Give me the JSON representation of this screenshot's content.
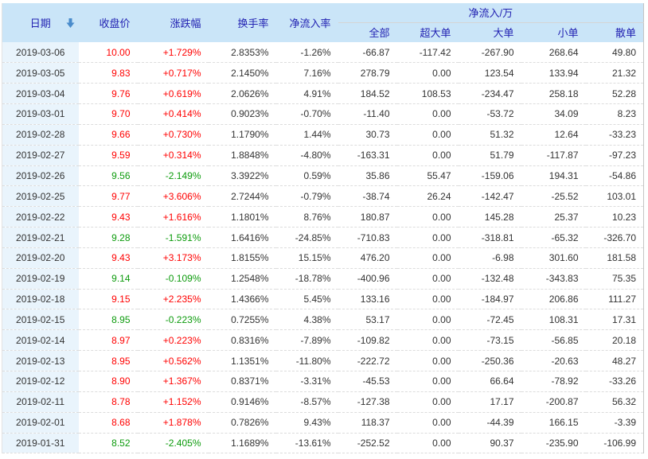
{
  "colors": {
    "up": "#ff0000",
    "down": "#0c9b0c",
    "header_text": "#2222b2",
    "header_bg": "#cae5f8",
    "date_col_bg": "#e9f4fc",
    "sort_arrow": "#4a8ccc"
  },
  "table": {
    "headers": {
      "date": "日期",
      "close": "收盘价",
      "change": "涨跌幅",
      "turnover": "换手率",
      "inflow_rate": "净流入率",
      "group": "净流入/万",
      "sub_all": "全部",
      "sub_super_large": "超大单",
      "sub_large": "大单",
      "sub_small": "小单",
      "sub_scattered": "散单"
    },
    "sort": {
      "column": "date",
      "direction": "desc"
    },
    "row_cell_keys": [
      "date",
      "close",
      "change",
      "turnover",
      "inflow_rate",
      "all",
      "super_large",
      "large",
      "small",
      "scattered"
    ],
    "rows": [
      {
        "date": "2019-03-06",
        "close": "10.00",
        "trend": "up",
        "change": "+1.729%",
        "turnover": "2.8353%",
        "inflow_rate": "-1.26%",
        "all": "-66.87",
        "super_large": "-117.42",
        "large": "-267.90",
        "small": "268.64",
        "scattered": "49.80"
      },
      {
        "date": "2019-03-05",
        "close": "9.83",
        "trend": "up",
        "change": "+0.717%",
        "turnover": "2.1450%",
        "inflow_rate": "7.16%",
        "all": "278.79",
        "super_large": "0.00",
        "large": "123.54",
        "small": "133.94",
        "scattered": "21.32"
      },
      {
        "date": "2019-03-04",
        "close": "9.76",
        "trend": "up",
        "change": "+0.619%",
        "turnover": "2.0626%",
        "inflow_rate": "4.91%",
        "all": "184.52",
        "super_large": "108.53",
        "large": "-234.47",
        "small": "258.18",
        "scattered": "52.28"
      },
      {
        "date": "2019-03-01",
        "close": "9.70",
        "trend": "up",
        "change": "+0.414%",
        "turnover": "0.9023%",
        "inflow_rate": "-0.70%",
        "all": "-11.40",
        "super_large": "0.00",
        "large": "-53.72",
        "small": "34.09",
        "scattered": "8.23"
      },
      {
        "date": "2019-02-28",
        "close": "9.66",
        "trend": "up",
        "change": "+0.730%",
        "turnover": "1.1790%",
        "inflow_rate": "1.44%",
        "all": "30.73",
        "super_large": "0.00",
        "large": "51.32",
        "small": "12.64",
        "scattered": "-33.23"
      },
      {
        "date": "2019-02-27",
        "close": "9.59",
        "trend": "up",
        "change": "+0.314%",
        "turnover": "1.8848%",
        "inflow_rate": "-4.80%",
        "all": "-163.31",
        "super_large": "0.00",
        "large": "51.79",
        "small": "-117.87",
        "scattered": "-97.23"
      },
      {
        "date": "2019-02-26",
        "close": "9.56",
        "trend": "down",
        "change": "-2.149%",
        "turnover": "3.3922%",
        "inflow_rate": "0.59%",
        "all": "35.86",
        "super_large": "55.47",
        "large": "-159.06",
        "small": "194.31",
        "scattered": "-54.86"
      },
      {
        "date": "2019-02-25",
        "close": "9.77",
        "trend": "up",
        "change": "+3.606%",
        "turnover": "2.7244%",
        "inflow_rate": "-0.79%",
        "all": "-38.74",
        "super_large": "26.24",
        "large": "-142.47",
        "small": "-25.52",
        "scattered": "103.01"
      },
      {
        "date": "2019-02-22",
        "close": "9.43",
        "trend": "up",
        "change": "+1.616%",
        "turnover": "1.1801%",
        "inflow_rate": "8.76%",
        "all": "180.87",
        "super_large": "0.00",
        "large": "145.28",
        "small": "25.37",
        "scattered": "10.23"
      },
      {
        "date": "2019-02-21",
        "close": "9.28",
        "trend": "down",
        "change": "-1.591%",
        "turnover": "1.6416%",
        "inflow_rate": "-24.85%",
        "all": "-710.83",
        "super_large": "0.00",
        "large": "-318.81",
        "small": "-65.32",
        "scattered": "-326.70"
      },
      {
        "date": "2019-02-20",
        "close": "9.43",
        "trend": "up",
        "change": "+3.173%",
        "turnover": "1.8155%",
        "inflow_rate": "15.15%",
        "all": "476.20",
        "super_large": "0.00",
        "large": "-6.98",
        "small": "301.60",
        "scattered": "181.58"
      },
      {
        "date": "2019-02-19",
        "close": "9.14",
        "trend": "down",
        "change": "-0.109%",
        "turnover": "1.2548%",
        "inflow_rate": "-18.78%",
        "all": "-400.96",
        "super_large": "0.00",
        "large": "-132.48",
        "small": "-343.83",
        "scattered": "75.35"
      },
      {
        "date": "2019-02-18",
        "close": "9.15",
        "trend": "up",
        "change": "+2.235%",
        "turnover": "1.4366%",
        "inflow_rate": "5.45%",
        "all": "133.16",
        "super_large": "0.00",
        "large": "-184.97",
        "small": "206.86",
        "scattered": "111.27"
      },
      {
        "date": "2019-02-15",
        "close": "8.95",
        "trend": "down",
        "change": "-0.223%",
        "turnover": "0.7255%",
        "inflow_rate": "4.38%",
        "all": "53.17",
        "super_large": "0.00",
        "large": "-72.45",
        "small": "108.31",
        "scattered": "17.31"
      },
      {
        "date": "2019-02-14",
        "close": "8.97",
        "trend": "up",
        "change": "+0.223%",
        "turnover": "0.8316%",
        "inflow_rate": "-7.89%",
        "all": "-109.82",
        "super_large": "0.00",
        "large": "-73.15",
        "small": "-56.85",
        "scattered": "20.18"
      },
      {
        "date": "2019-02-13",
        "close": "8.95",
        "trend": "up",
        "change": "+0.562%",
        "turnover": "1.1351%",
        "inflow_rate": "-11.80%",
        "all": "-222.72",
        "super_large": "0.00",
        "large": "-250.36",
        "small": "-20.63",
        "scattered": "48.27"
      },
      {
        "date": "2019-02-12",
        "close": "8.90",
        "trend": "up",
        "change": "+1.367%",
        "turnover": "0.8371%",
        "inflow_rate": "-3.31%",
        "all": "-45.53",
        "super_large": "0.00",
        "large": "66.64",
        "small": "-78.92",
        "scattered": "-33.26"
      },
      {
        "date": "2019-02-11",
        "close": "8.78",
        "trend": "up",
        "change": "+1.152%",
        "turnover": "0.9146%",
        "inflow_rate": "-8.57%",
        "all": "-127.38",
        "super_large": "0.00",
        "large": "17.17",
        "small": "-200.87",
        "scattered": "56.32"
      },
      {
        "date": "2019-02-01",
        "close": "8.68",
        "trend": "up",
        "change": "+1.878%",
        "turnover": "0.7826%",
        "inflow_rate": "9.43%",
        "all": "118.37",
        "super_large": "0.00",
        "large": "-44.39",
        "small": "166.15",
        "scattered": "-3.39"
      },
      {
        "date": "2019-01-31",
        "close": "8.52",
        "trend": "down",
        "change": "-2.405%",
        "turnover": "1.1689%",
        "inflow_rate": "-13.61%",
        "all": "-252.52",
        "super_large": "0.00",
        "large": "90.37",
        "small": "-235.90",
        "scattered": "-106.99"
      }
    ]
  }
}
